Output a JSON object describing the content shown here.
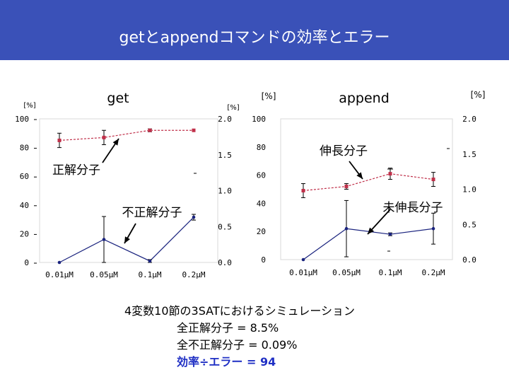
{
  "header": {
    "title": "getとappendコマンドの効率とエラー"
  },
  "colors": {
    "title_bg": "#3a51b8",
    "correct": "#c0304a",
    "incorrect": "#1a237e",
    "highlight": "#1f2fc4"
  },
  "chart_data": [
    {
      "type": "line",
      "title": "get",
      "categories": [
        "0.01μM",
        "0.05μM",
        "0.1μM",
        "0.2μM"
      ],
      "left_axis": {
        "unit": "[%]",
        "range": [
          0,
          100
        ],
        "ticks": [
          "0",
          "20",
          "40",
          "60",
          "80",
          "100"
        ]
      },
      "right_axis": {
        "unit": "[%]",
        "range": [
          0,
          2.0
        ],
        "ticks": [
          "0.0",
          "0.5",
          "1.0",
          "1.5",
          "2.0"
        ]
      },
      "series": [
        {
          "name": "正解分子",
          "axis": "left",
          "values": [
            85,
            87,
            92,
            92
          ],
          "errors": [
            5,
            5,
            1,
            0
          ]
        },
        {
          "name": "不正解分子",
          "axis": "right",
          "values": [
            0,
            0.32,
            0.02,
            0.63
          ],
          "errors": [
            0,
            0.32,
            0.02,
            0.04
          ]
        }
      ],
      "annotations": [
        "正解分子",
        "不正解分子"
      ]
    },
    {
      "type": "line",
      "title": "append",
      "categories": [
        "0.01μM",
        "0.05μM",
        "0.1μM",
        "0.2μM"
      ],
      "left_axis": {
        "unit": "[%]",
        "range": [
          0,
          100
        ],
        "ticks": [
          "0",
          "20",
          "40",
          "60",
          "80",
          "100"
        ]
      },
      "right_axis": {
        "unit": "[%]",
        "range": [
          0,
          2.0
        ],
        "ticks": [
          "0.0",
          "0.5",
          "1.0",
          "1.5",
          "2.0"
        ]
      },
      "series": [
        {
          "name": "伸長分子",
          "axis": "left",
          "values": [
            49,
            52,
            61,
            57
          ],
          "errors": [
            5,
            2,
            4,
            5
          ]
        },
        {
          "name": "未伸長分子",
          "axis": "right",
          "values": [
            0,
            0.44,
            0.36,
            0.44
          ],
          "errors": [
            0,
            0.4,
            0.02,
            0.22
          ]
        }
      ],
      "annotations": [
        "伸長分子",
        "未伸長分子"
      ]
    }
  ],
  "summary": {
    "line1": "4変数10節の3SATにおけるシミュレーション",
    "line2": "全正解分子 = 8.5%",
    "line3": "全不正解分子 = 0.09%",
    "line4": "効率÷エラー = 94"
  }
}
